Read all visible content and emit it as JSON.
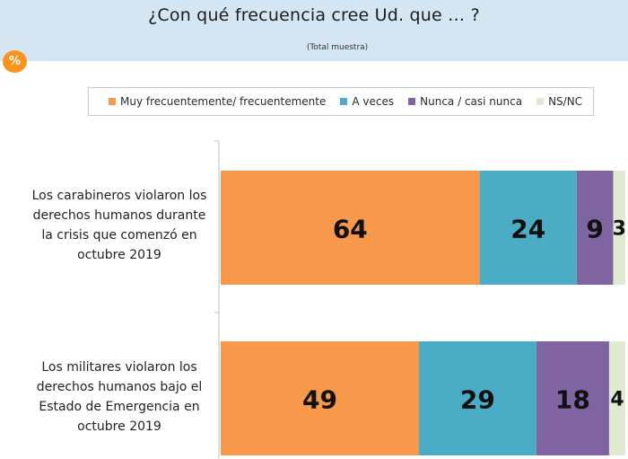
{
  "header": {
    "title": "¿Con qué frecuencia cree Ud. que … ?",
    "subtitle": "(Total muestra)",
    "badge": "%"
  },
  "colors": {
    "header_bg": "#d4e6f4",
    "series": [
      "#f7984a",
      "#4bacc6",
      "#8064a2",
      "#e0ead0"
    ]
  },
  "chart_data": {
    "type": "bar",
    "orientation": "horizontal",
    "stacked": true,
    "title": "¿Con qué frecuencia cree Ud. que … ?",
    "subtitle": "(Total muestra)",
    "categories": [
      "Los carabineros violaron los derechos humanos durante la crisis que comenzó en octubre 2019",
      "Los militares violaron los derechos humanos bajo el Estado de Emergencia en octubre 2019"
    ],
    "series": [
      {
        "name": "Muy frecuentemente/ frecuentemente",
        "values": [
          64,
          49
        ]
      },
      {
        "name": "A veces",
        "values": [
          24,
          29
        ]
      },
      {
        "name": "Nunca / casi nunca",
        "values": [
          9,
          18
        ]
      },
      {
        "name": "NS/NC",
        "values": [
          3,
          4
        ]
      }
    ],
    "xlim": [
      0,
      100
    ],
    "unit": "%",
    "legend_position": "top"
  }
}
